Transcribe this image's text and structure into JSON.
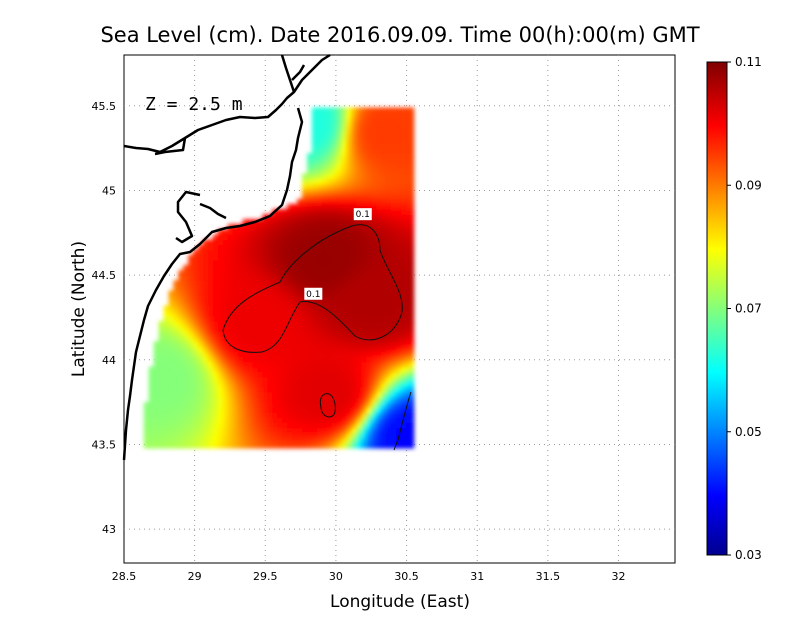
{
  "title": "Sea Level (cm). Date 2016.09.09. Time 00(h):00(m) GMT",
  "depth_label": "Z = 2.5 m",
  "chart_data": {
    "type": "heatmap",
    "title": "Sea Level (cm). Date 2016.09.09. Time 00(h):00(m) GMT",
    "xlabel": "Longitude (East)",
    "ylabel": "Latitude (North)",
    "xlim": [
      28.5,
      32.4
    ],
    "ylim": [
      42.8,
      45.8
    ],
    "x_ticks": [
      "28.5",
      "29",
      "29.5",
      "30",
      "30.5",
      "31",
      "31.5",
      "32"
    ],
    "y_ticks": [
      "43",
      "43.5",
      "44",
      "44.5",
      "45",
      "45.5"
    ],
    "grid": true,
    "data_extent": {
      "lon": [
        28.64,
        30.55
      ],
      "lat": [
        43.48,
        45.5
      ]
    },
    "colorbar": {
      "min": 0.03,
      "max": 0.11,
      "ticks": [
        "0.11",
        "0.09",
        "0.07",
        "0.05",
        "0.03"
      ],
      "colormap": [
        "#00008f",
        "#0000ff",
        "#00ffff",
        "#ffff00",
        "#ff0000",
        "#800000"
      ]
    },
    "field_centers": [
      {
        "lon": 29.92,
        "lat": 44.6,
        "value": 0.108
      },
      {
        "lon": 30.25,
        "lat": 44.35,
        "value": 0.106
      },
      {
        "lon": 29.45,
        "lat": 44.22,
        "value": 0.101
      },
      {
        "lon": 29.95,
        "lat": 43.8,
        "value": 0.102
      },
      {
        "lon": 30.35,
        "lat": 45.35,
        "value": 0.095
      },
      {
        "lon": 29.8,
        "lat": 45.4,
        "value": 0.062
      },
      {
        "lon": 28.75,
        "lat": 43.9,
        "value": 0.07
      },
      {
        "lon": 30.52,
        "lat": 43.55,
        "value": 0.04
      }
    ],
    "contour_labels": [
      {
        "text": "0.1",
        "lon": 30.19,
        "lat": 44.86
      },
      {
        "text": "0.1",
        "lon": 29.84,
        "lat": 44.39
      }
    ]
  }
}
